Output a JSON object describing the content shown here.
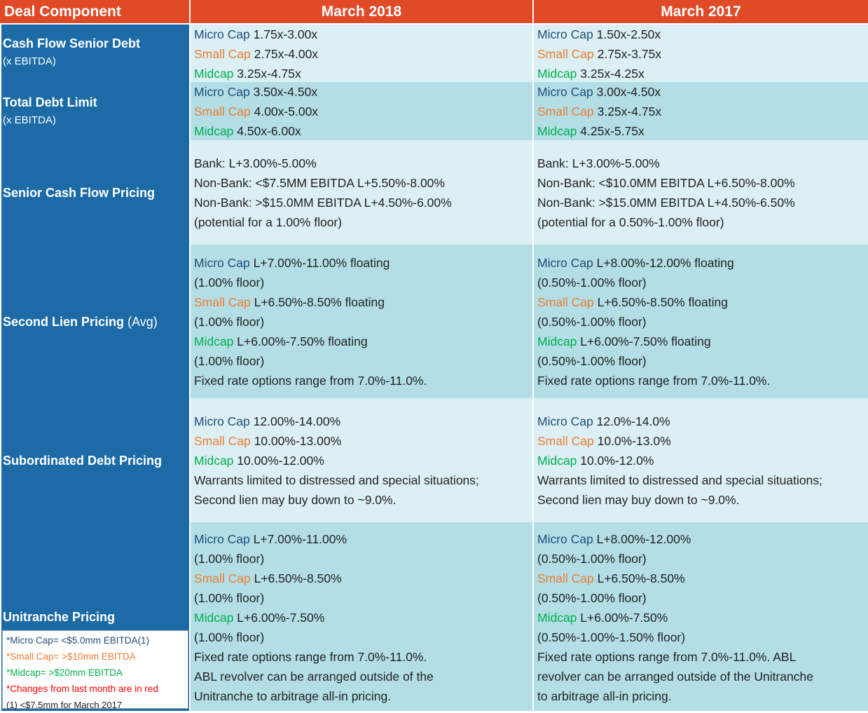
{
  "header": {
    "col1": "Deal Component",
    "col2": "March 2018",
    "col3": "March  2017"
  },
  "colors": {
    "header_bg": "#E04A27",
    "label_bg": "#1C6BA7",
    "row_light": "#DCEFF4",
    "row_dark": "#B3DEE6",
    "micro_cap": "#1F4E79",
    "small_cap": "#ED7D31",
    "midcap": "#00B050",
    "changes": "#FF0000"
  },
  "tiers": {
    "micro": "Micro Cap",
    "small": "Small Cap",
    "mid": "Midcap"
  },
  "rows": [
    {
      "label": "Cash Flow Senior Debt",
      "sublabel": "(x EBITDA)",
      "march2018": [
        "1.75x-3.00x",
        "2.75x-4.00x",
        "3.25x-4.75x"
      ],
      "march2017": [
        "1.50x-2.50x",
        "2.75x-3.75x",
        "3.25x-4.25x"
      ]
    },
    {
      "label": "Total Debt Limit",
      "sublabel": "(x EBITDA)",
      "march2018": [
        "3.50x-4.50x",
        "4.00x-5.00x",
        "4.50x-6.00x"
      ],
      "march2017": [
        "3.00x-4.50x",
        "3.25x-4.75x",
        "4.25x-5.75x"
      ]
    },
    {
      "label": "Senior Cash Flow Pricing",
      "march2018": [
        "Bank: L+3.00%-5.00%",
        "Non-Bank: <$7.5MM EBITDA L+5.50%-8.00%",
        "Non-Bank: >$15.0MM EBITDA L+4.50%-6.00%",
        "(potential for a 1.00% floor)"
      ],
      "march2017": [
        "Bank: L+3.00%-5.00%",
        "Non-Bank: <$10.0MM EBITDA L+6.50%-8.00%",
        "Non-Bank: >$15.0MM EBITDA L+4.50%-6.50%",
        "(potential for a 0.50%-1.00% floor)"
      ]
    },
    {
      "label": "Second Lien Pricing",
      "label_suffix": "(Avg)",
      "march2018": {
        "micro": "L+7.00%-11.00% floating",
        "micro_floor": "(1.00% floor)",
        "small": "L+6.50%-8.50% floating",
        "small_floor": "(1.00% floor)",
        "mid": "L+6.00%-7.50% floating",
        "mid_floor": "(1.00% floor)",
        "note": "Fixed rate options range from 7.0%-11.0%."
      },
      "march2017": {
        "micro": "L+8.00%-12.00% floating",
        "micro_floor": "(0.50%-1.00% floor)",
        "small": "L+6.50%-8.50% floating",
        "small_floor": "(0.50%-1.00% floor)",
        "mid": "L+6.00%-7.50% floating",
        "mid_floor": "(0.50%-1.00% floor)",
        "note": "Fixed rate options range from 7.0%-11.0%."
      }
    },
    {
      "label": "Subordinated Debt Pricing",
      "march2018": {
        "micro": "12.00%-14.00%",
        "small": "10.00%-13.00%",
        "mid": "10.00%-12.00%",
        "note1": "Warrants limited to distressed and special situations;",
        "note2": "Second lien may buy down to ~9.0%."
      },
      "march2017": {
        "micro": "12.0%-14.0%",
        "small": "10.0%-13.0%",
        "mid": "10.0%-12.0%",
        "note1": "Warrants limited to distressed and special situations;",
        "note2": "Second lien may buy down to ~9.0%."
      }
    },
    {
      "label": "Unitranche Pricing",
      "march2018": {
        "micro": "L+7.00%-11.00%",
        "micro_floor": "(1.00% floor)",
        "small": "L+6.50%-8.50%",
        "small_floor": "(1.00% floor)",
        "mid": "L+6.00%-7.50%",
        "mid_floor": "(1.00% floor)",
        "note1": "Fixed rate options range from 7.0%-11.0%.",
        "note2": "ABL revolver can be arranged outside of the",
        "note3": "Unitranche to arbitrage all-in pricing."
      },
      "march2017": {
        "micro": "L+8.00%-12.00%",
        "micro_floor": "(0.50%-1.00% floor)",
        "small": "L+6.50%-8.50%",
        "small_floor": "(0.50%-1.00% floor)",
        "mid": "L+6.00%-7.50%",
        "mid_floor": "(0.50%-1.00%-1.50% floor)",
        "note1": "Fixed rate options range from 7.0%-11.0%. ABL",
        "note2": "revolver can be arranged outside of the Unitranche",
        "note3": "to arbitrage all-in pricing."
      }
    }
  ],
  "legend": {
    "micro": "*Micro Cap= <$5.0mm EBITDA(1)",
    "small": "*Small Cap= >$10mm EBITDA",
    "mid": "*Midcap= >$20mm EBITDA",
    "changes": "*Changes from last month are in red",
    "footnote": "(1) <$7.5mm for March 2017"
  }
}
